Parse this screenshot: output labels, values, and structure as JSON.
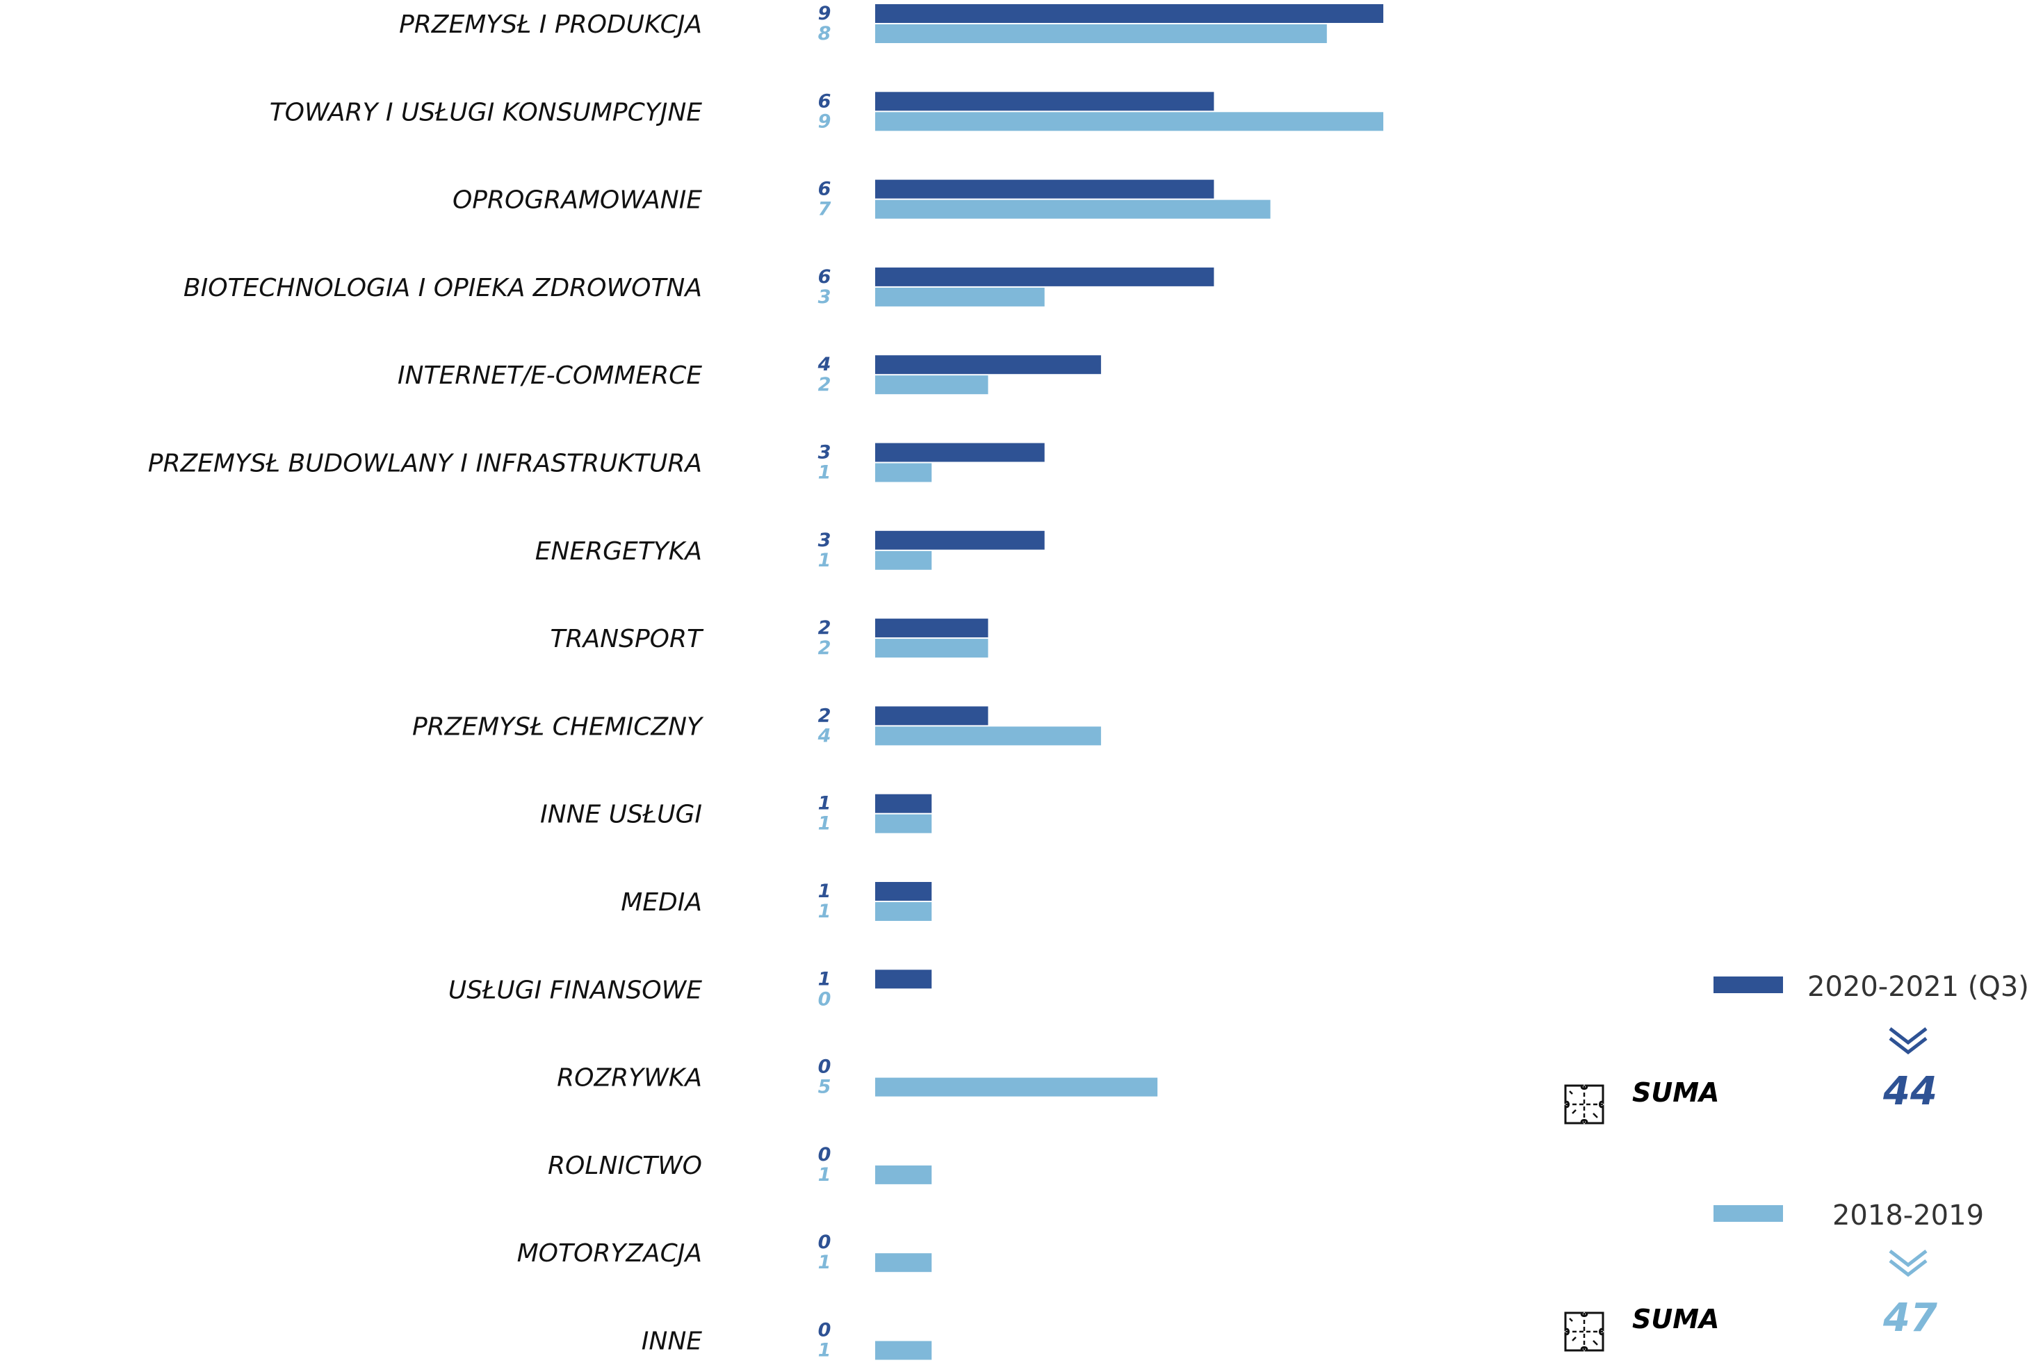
{
  "chart_data": {
    "type": "bar",
    "orientation": "horizontal",
    "categories": [
      "PRZEMYSŁ I PRODUKCJA",
      "TOWARY I USŁUGI KONSUMPCYJNE",
      "OPROGRAMOWANIE",
      "BIOTECHNOLOGIA I OPIEKA ZDROWOTNA",
      "INTERNET/E-COMMERCE",
      "PRZEMYSŁ BUDOWLANY I INFRASTRUKTURA",
      "ENERGETYKA",
      "TRANSPORT",
      "PRZEMYSŁ CHEMICZNY",
      "INNE USŁUGI",
      "MEDIA",
      "USŁUGI FINANSOWE",
      "ROZRYWKA",
      "ROLNICTWO",
      "MOTORYZACJA",
      "INNE"
    ],
    "series": [
      {
        "name": "2020-2021 (Q3)",
        "color": "#2e5294",
        "values": [
          9,
          6,
          6,
          6,
          4,
          3,
          3,
          2,
          2,
          1,
          1,
          1,
          0,
          0,
          0,
          0
        ]
      },
      {
        "name": "2018-2019",
        "color": "#7fb8d9",
        "values": [
          8,
          9,
          7,
          3,
          2,
          1,
          1,
          2,
          4,
          1,
          1,
          0,
          5,
          1,
          1,
          1
        ]
      }
    ],
    "xlim": [
      0,
      9
    ],
    "legend_position": "bottom-right",
    "grid": false
  },
  "legend": {
    "suma_label": "SUMA",
    "totals": [
      {
        "series": "2020-2021 (Q3)",
        "value": "44"
      },
      {
        "series": "2018-2019",
        "value": "47"
      }
    ]
  },
  "icons": [
    "puzzle-icon",
    "double-chevron-down-icon"
  ]
}
